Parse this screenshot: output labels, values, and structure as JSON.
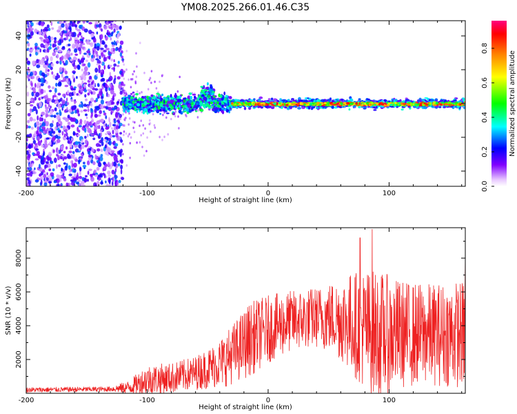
{
  "figure": {
    "title": "YM08.2025.266.01.46.C35"
  },
  "chart_data": [
    {
      "type": "heatmap",
      "title": "YM08.2025.266.01.46.C35",
      "xlabel": "Height of straight line (km)",
      "ylabel": "Frequency (Hz)",
      "xlim": [
        -200,
        163
      ],
      "ylim": [
        -49,
        49
      ],
      "xticks": [
        -200,
        -100,
        0,
        100
      ],
      "yticks": [
        -40,
        -20,
        0,
        20,
        40
      ],
      "colorbar": {
        "label": "Normalized spectral amplitude",
        "range": [
          0,
          0.96
        ],
        "ticks": [
          0.0,
          0.2,
          0.4,
          0.6,
          0.8
        ],
        "colormap": [
          "#ffffff",
          "#e8c8ff",
          "#8000ff",
          "#0000ff",
          "#00ffff",
          "#00ff00",
          "#ffff00",
          "#ff8000",
          "#ff0000",
          "#ff0080"
        ]
      },
      "regions": [
        {
          "x_range": [
            -200,
            -120
          ],
          "freq_spread": 49,
          "amplitude": "0.1-0.3 scattered noise"
        },
        {
          "x_range": [
            -120,
            -30
          ],
          "freq_spread": 8,
          "amplitude": "0.2-0.5 broadband"
        },
        {
          "x_range": [
            -30,
            163
          ],
          "freq_center": 0,
          "freq_spread": 4,
          "amplitude": "0.5-0.96 narrow band near 0 Hz"
        }
      ]
    },
    {
      "type": "line",
      "xlabel": "Height of straight line (km)",
      "ylabel": "SNR (10 * v/v)",
      "xlim": [
        -200,
        163
      ],
      "ylim": [
        0,
        9800
      ],
      "xticks": [
        -200,
        -100,
        0,
        100
      ],
      "yticks": [
        2000,
        4000,
        6000,
        8000
      ],
      "color": "#ee2222",
      "envelope": {
        "x": [
          -200,
          -130,
          -115,
          -100,
          -80,
          -60,
          -45,
          -35,
          -25,
          -15,
          0,
          20,
          40,
          55,
          65,
          80,
          90,
          110,
          130,
          163
        ],
        "y_mean": [
          200,
          250,
          350,
          800,
          900,
          1200,
          1600,
          2000,
          2600,
          3200,
          3800,
          4300,
          4500,
          4500,
          4300,
          3800,
          3500,
          3500,
          3500,
          3500
        ],
        "y_amp": [
          150,
          150,
          400,
          900,
          900,
          1000,
          1300,
          1600,
          1900,
          2200,
          2000,
          1800,
          1800,
          2200,
          2800,
          3600,
          3800,
          3200,
          3000,
          3200
        ]
      },
      "notable_peaks": [
        {
          "x": 86,
          "y": 9700
        },
        {
          "x": 76,
          "y": 9200
        },
        {
          "x": 163,
          "y": 8300
        }
      ]
    }
  ]
}
